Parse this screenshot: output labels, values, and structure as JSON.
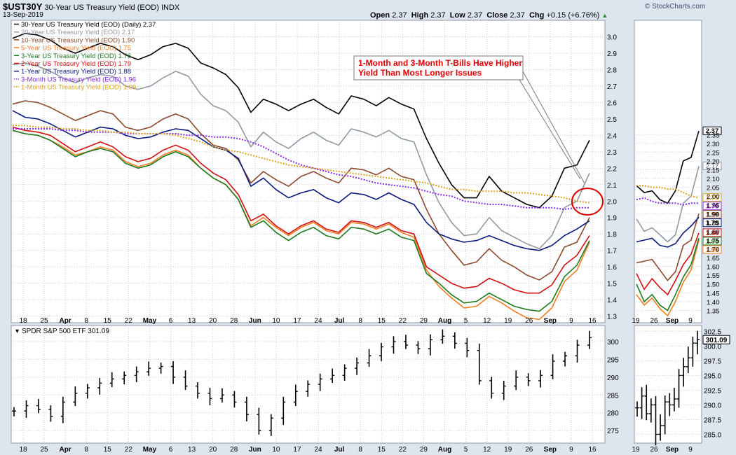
{
  "header": {
    "symbol": "$UST30Y",
    "name": "30-Year US Treasury Yield (EOD)",
    "exchange": "INDX",
    "date": "13-Sep-2019",
    "brand": "© StockCharts.com",
    "ohlc": {
      "open_label": "Open",
      "open": "2.37",
      "high_label": "High",
      "high": "2.37",
      "low_label": "Low",
      "low": "2.37",
      "close_label": "Close",
      "close": "2.37",
      "chg_label": "Chg",
      "chg": "+0.15 (+6.76%)",
      "chg_arrow": "▲"
    }
  },
  "annotation": {
    "text_line1": "1-Month and 3-Month T-Bills Have Higher",
    "text_line2": "Yield Than Most Longer Issues",
    "color": "#e00000"
  },
  "chart_data": [
    {
      "type": "line",
      "panel": "yields-main",
      "ylim": [
        1.26,
        3.1
      ],
      "y_ticks": [
        1.3,
        1.4,
        1.5,
        1.6,
        1.7,
        1.8,
        1.9,
        2.0,
        2.1,
        2.2,
        2.3,
        2.4,
        2.5,
        2.6,
        2.7,
        2.8,
        2.9,
        3.0
      ],
      "x_ticks": [
        "18",
        "25",
        "Apr",
        "8",
        "15",
        "22",
        "May",
        "6",
        "13",
        "20",
        "28",
        "Jun",
        "10",
        "17",
        "24",
        "Jul",
        "8",
        "15",
        "22",
        "29",
        "Aug",
        "5",
        "12",
        "19",
        "26",
        "Sep",
        "9",
        "16"
      ],
      "grid": true,
      "legend_position": "top-left",
      "series": [
        {
          "name": "30-Year US Treasury Yield (EOD) (Daily) 2.37",
          "color": "#000000",
          "dashed": false,
          "values": [
            2.99,
            3.02,
            3.01,
            2.98,
            2.93,
            2.9,
            2.93,
            2.96,
            2.94,
            2.89,
            2.86,
            2.89,
            2.94,
            2.96,
            2.93,
            2.84,
            2.81,
            2.77,
            2.69,
            2.54,
            2.62,
            2.59,
            2.55,
            2.59,
            2.62,
            2.57,
            2.53,
            2.64,
            2.62,
            2.58,
            2.63,
            2.59,
            2.56,
            2.38,
            2.23,
            2.1,
            2.02,
            2.02,
            2.15,
            2.06,
            2.02,
            1.98,
            1.96,
            2.03,
            2.2,
            2.22,
            2.37
          ]
        },
        {
          "name": "20-Year US Treasury Yield (EOD) 2.17",
          "color": "#909aa3",
          "dashed": false,
          "values": [
            2.83,
            2.84,
            2.82,
            2.79,
            2.75,
            2.72,
            2.75,
            2.77,
            2.76,
            2.7,
            2.68,
            2.7,
            2.75,
            2.79,
            2.76,
            2.65,
            2.58,
            2.55,
            2.48,
            2.33,
            2.42,
            2.36,
            2.32,
            2.38,
            2.42,
            2.37,
            2.34,
            2.44,
            2.42,
            2.39,
            2.43,
            2.38,
            2.36,
            2.16,
            1.99,
            1.87,
            1.79,
            1.8,
            1.9,
            1.82,
            1.78,
            1.74,
            1.71,
            1.79,
            1.96,
            2.0,
            2.17
          ]
        },
        {
          "name": "10-Year US Treasury Yield (EOD) 1.90",
          "color": "#8b4a2b",
          "dashed": false,
          "values": [
            2.59,
            2.61,
            2.6,
            2.57,
            2.53,
            2.49,
            2.52,
            2.55,
            2.53,
            2.45,
            2.43,
            2.45,
            2.5,
            2.53,
            2.5,
            2.41,
            2.34,
            2.32,
            2.25,
            2.11,
            2.18,
            2.13,
            2.09,
            2.15,
            2.18,
            2.14,
            2.11,
            2.2,
            2.19,
            2.16,
            2.2,
            2.15,
            2.13,
            1.95,
            1.8,
            1.7,
            1.61,
            1.63,
            1.71,
            1.64,
            1.6,
            1.55,
            1.52,
            1.57,
            1.72,
            1.75,
            1.9
          ]
        },
        {
          "name": "5-Year US Treasury Yield (EOD) 1.75",
          "color": "#ef7d22",
          "dashed": false,
          "values": [
            2.43,
            2.41,
            2.4,
            2.37,
            2.33,
            2.28,
            2.3,
            2.33,
            2.31,
            2.24,
            2.21,
            2.23,
            2.28,
            2.31,
            2.28,
            2.2,
            2.14,
            2.1,
            2.01,
            1.85,
            1.9,
            1.84,
            1.79,
            1.84,
            1.87,
            1.82,
            1.8,
            1.87,
            1.86,
            1.83,
            1.86,
            1.81,
            1.78,
            1.58,
            1.48,
            1.41,
            1.35,
            1.36,
            1.42,
            1.38,
            1.33,
            1.29,
            1.28,
            1.35,
            1.51,
            1.58,
            1.75
          ]
        },
        {
          "name": "3-Year US Treasury Yield (EOD) 1.76",
          "color": "#1e7a1e",
          "dashed": false,
          "values": [
            2.43,
            2.41,
            2.4,
            2.37,
            2.32,
            2.27,
            2.3,
            2.32,
            2.3,
            2.23,
            2.2,
            2.22,
            2.27,
            2.3,
            2.27,
            2.2,
            2.14,
            2.1,
            2.01,
            1.84,
            1.88,
            1.81,
            1.76,
            1.81,
            1.84,
            1.79,
            1.77,
            1.84,
            1.83,
            1.8,
            1.83,
            1.78,
            1.76,
            1.56,
            1.5,
            1.43,
            1.38,
            1.39,
            1.44,
            1.4,
            1.36,
            1.34,
            1.33,
            1.39,
            1.54,
            1.61,
            1.76
          ]
        },
        {
          "name": "2-Year US Treasury Yield (EOD) 1.79",
          "color": "#d01010",
          "dashed": false,
          "values": [
            2.45,
            2.43,
            2.42,
            2.4,
            2.35,
            2.3,
            2.33,
            2.36,
            2.33,
            2.27,
            2.24,
            2.26,
            2.31,
            2.34,
            2.31,
            2.23,
            2.17,
            2.13,
            2.04,
            1.88,
            1.92,
            1.85,
            1.8,
            1.85,
            1.88,
            1.83,
            1.81,
            1.88,
            1.87,
            1.84,
            1.87,
            1.82,
            1.8,
            1.6,
            1.55,
            1.5,
            1.47,
            1.48,
            1.53,
            1.5,
            1.46,
            1.44,
            1.44,
            1.49,
            1.61,
            1.67,
            1.79
          ]
        },
        {
          "name": "1-Year US Treasury Yield (EOD) 1.88",
          "color": "#0a1a7a",
          "dashed": false,
          "values": [
            2.55,
            2.51,
            2.5,
            2.47,
            2.43,
            2.39,
            2.42,
            2.45,
            2.44,
            2.4,
            2.38,
            2.39,
            2.42,
            2.44,
            2.43,
            2.38,
            2.33,
            2.31,
            2.26,
            2.09,
            2.14,
            2.07,
            2.02,
            2.05,
            2.07,
            2.02,
            1.99,
            2.05,
            2.04,
            2.01,
            2.05,
            2.01,
            1.98,
            1.87,
            1.8,
            1.77,
            1.75,
            1.76,
            1.79,
            1.76,
            1.73,
            1.71,
            1.7,
            1.73,
            1.79,
            1.83,
            1.88
          ]
        },
        {
          "name": "3-Month US Treasury Yield (EOD) 1.96",
          "color": "#8a2be2",
          "dashed": true,
          "values": [
            2.44,
            2.44,
            2.44,
            2.44,
            2.43,
            2.43,
            2.42,
            2.42,
            2.42,
            2.41,
            2.41,
            2.41,
            2.41,
            2.41,
            2.4,
            2.4,
            2.39,
            2.39,
            2.38,
            2.36,
            2.33,
            2.29,
            2.25,
            2.22,
            2.2,
            2.18,
            2.16,
            2.15,
            2.13,
            2.11,
            2.1,
            2.09,
            2.08,
            2.06,
            2.04,
            2.03,
            2.0,
            1.99,
            1.98,
            1.98,
            1.97,
            1.96,
            1.96,
            1.96,
            1.95,
            1.96,
            1.96
          ]
        },
        {
          "name": "1-Month US Treasury Yield (EOD) 1.99",
          "color": "#daa520",
          "dashed": true,
          "values": [
            2.46,
            2.46,
            2.45,
            2.45,
            2.44,
            2.44,
            2.43,
            2.43,
            2.42,
            2.42,
            2.41,
            2.41,
            2.41,
            2.4,
            2.38,
            2.36,
            2.33,
            2.31,
            2.3,
            2.28,
            2.26,
            2.24,
            2.22,
            2.21,
            2.2,
            2.19,
            2.18,
            2.17,
            2.16,
            2.15,
            2.14,
            2.13,
            2.12,
            2.11,
            2.09,
            2.07,
            2.07,
            2.06,
            2.06,
            2.06,
            2.05,
            2.05,
            2.04,
            2.03,
            2.02,
            2.0,
            1.99
          ]
        }
      ]
    },
    {
      "type": "line",
      "panel": "yields-inset",
      "ylim": [
        1.28,
        3.0
      ],
      "y_ticks": [
        1.35,
        1.4,
        1.45,
        1.5,
        1.55,
        1.6,
        1.65,
        1.7,
        1.75,
        1.8,
        1.85,
        1.9,
        1.95,
        2.0,
        2.05,
        2.1,
        2.15,
        2.2,
        2.25,
        2.3,
        2.35
      ],
      "x_ticks": [
        "19",
        "26",
        "Sep",
        "9"
      ],
      "value_labels": [
        "2.37",
        "2.17",
        "1.99",
        "1.96",
        "1.90",
        "1.88",
        "1.79",
        "1.76",
        "1.75"
      ],
      "series": [
        {
          "name": "30-Year",
          "color": "#000000",
          "values": [
            2.06,
            2.02,
            2.03,
            1.98,
            1.96,
            2.03,
            2.2,
            2.22,
            2.37
          ]
        },
        {
          "name": "20-Year",
          "color": "#909aa3",
          "values": [
            1.87,
            1.8,
            1.82,
            1.78,
            1.74,
            1.78,
            1.96,
            2.0,
            2.17
          ]
        },
        {
          "name": "10-Year",
          "color": "#8b4a2b",
          "values": [
            1.62,
            1.63,
            1.64,
            1.58,
            1.52,
            1.57,
            1.72,
            1.75,
            1.9
          ]
        },
        {
          "name": "5-Year",
          "color": "#ef7d22",
          "values": [
            1.44,
            1.38,
            1.42,
            1.36,
            1.32,
            1.4,
            1.51,
            1.58,
            1.75
          ]
        },
        {
          "name": "3-Year",
          "color": "#1e7a1e",
          "values": [
            1.5,
            1.4,
            1.44,
            1.38,
            1.35,
            1.44,
            1.54,
            1.61,
            1.76
          ]
        },
        {
          "name": "2-Year",
          "color": "#d01010",
          "values": [
            1.56,
            1.47,
            1.53,
            1.48,
            1.44,
            1.52,
            1.61,
            1.67,
            1.79
          ]
        },
        {
          "name": "1-Year",
          "color": "#0a1a7a",
          "values": [
            1.74,
            1.75,
            1.76,
            1.72,
            1.71,
            1.73,
            1.79,
            1.83,
            1.88
          ]
        },
        {
          "name": "3-Month",
          "color": "#8a2be2",
          "dashed": true,
          "values": [
            1.98,
            1.99,
            1.97,
            1.96,
            1.96,
            1.96,
            1.95,
            1.96,
            1.96
          ]
        },
        {
          "name": "1-Month",
          "color": "#daa520",
          "dashed": true,
          "values": [
            2.06,
            2.06,
            2.05,
            2.05,
            2.04,
            2.04,
            2.02,
            2.0,
            1.99
          ]
        }
      ]
    },
    {
      "type": "ohlc",
      "panel": "spy-main",
      "title": "SPDR S&P 500 ETF 301.09",
      "ylim": [
        271.5,
        304.5
      ],
      "y_ticks": [
        275,
        280,
        285,
        290,
        295,
        300
      ],
      "x_ticks": [
        "18",
        "25",
        "Apr",
        "8",
        "15",
        "22",
        "May",
        "6",
        "13",
        "20",
        "28",
        "Jun",
        "10",
        "17",
        "24",
        "Jul",
        "8",
        "15",
        "22",
        "29",
        "Aug",
        "5",
        "12",
        "19",
        "26",
        "Sep",
        "9",
        "16"
      ],
      "closes": [
        280.5,
        282.0,
        281.0,
        279.0,
        283.0,
        285.5,
        287.0,
        288.3,
        289.5,
        290.5,
        291.5,
        292.5,
        293.0,
        290.0,
        287.5,
        285.5,
        284.0,
        285.0,
        283.0,
        279.5,
        275.0,
        278.5,
        283.0,
        286.0,
        288.0,
        289.5,
        290.5,
        292.5,
        294.0,
        296.0,
        298.5,
        300.0,
        299.0,
        298.0,
        300.5,
        301.5,
        299.5,
        297.5,
        289.0,
        285.5,
        287.5,
        290.0,
        289.0,
        290.5,
        294.5,
        296.0,
        299.0,
        301.09
      ]
    },
    {
      "type": "ohlc",
      "panel": "spy-inset",
      "ylim": [
        283.5,
        303.5
      ],
      "y_ticks": [
        285.0,
        287.5,
        290.0,
        292.5,
        295.0,
        297.5,
        300.0,
        302.5
      ],
      "x_ticks": [
        "19",
        "26",
        "Sep",
        "9"
      ],
      "value_label": "301.09",
      "closes": [
        289.5,
        291.5,
        288.5,
        290.0,
        285.0,
        286.5,
        290.5,
        290.0,
        291.0,
        295.0,
        296.5,
        298.0,
        300.5,
        301.09
      ]
    }
  ]
}
